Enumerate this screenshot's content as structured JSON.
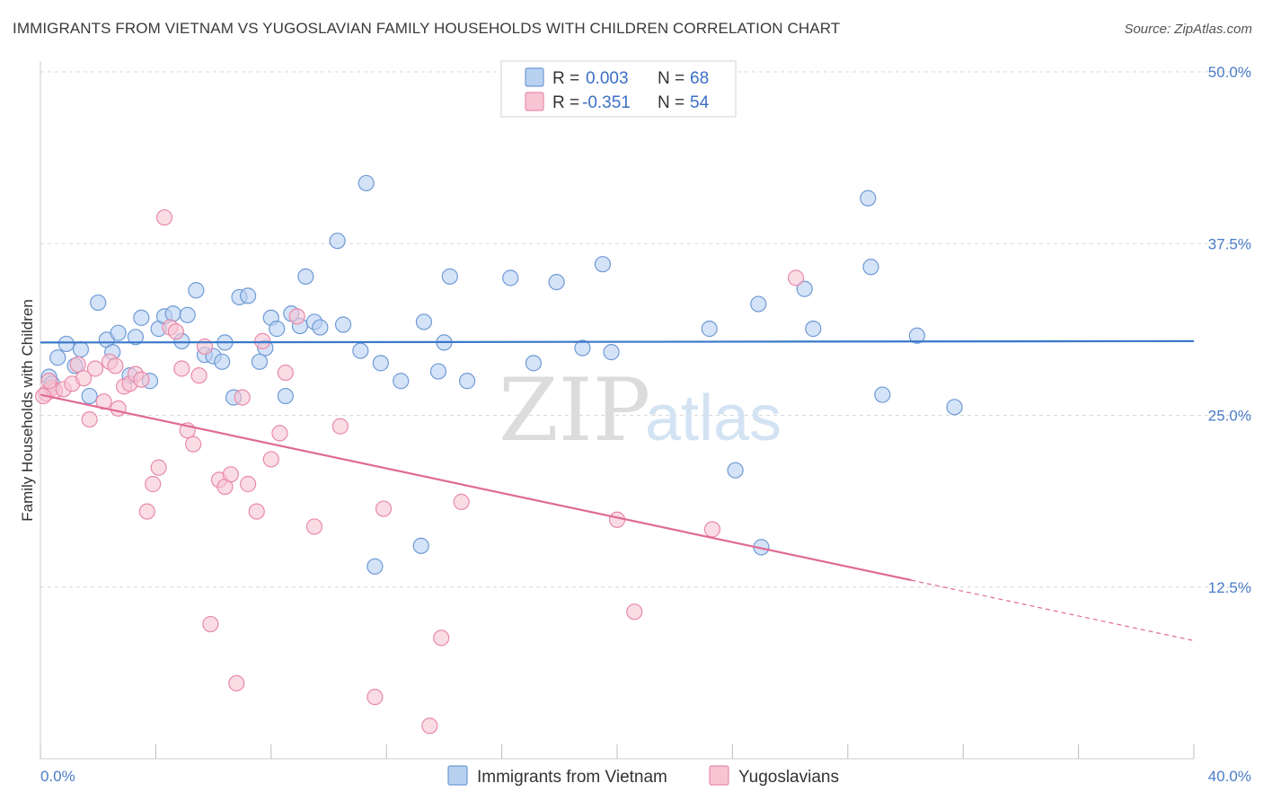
{
  "title": "IMMIGRANTS FROM VIETNAM VS YUGOSLAVIAN FAMILY HOUSEHOLDS WITH CHILDREN CORRELATION CHART",
  "source": "Source: ZipAtlas.com",
  "watermark": {
    "zip": "ZIP",
    "atlas": "atlas"
  },
  "colors": {
    "vietnam_fill": "#b8d1f1",
    "vietnam_stroke": "#6f9ad6",
    "vietnam_line": "#3a78c9",
    "yugo_fill": "#f7c4d4",
    "yugo_stroke": "#e88aa9",
    "yugo_line": "#e06a95",
    "grid": "#d8d8d8",
    "axis_label": "#4a7cc9"
  },
  "legend": {
    "rows": [
      {
        "r_label": "R =",
        "r_value": "0.003",
        "n_label": "N =",
        "n_value": "68"
      },
      {
        "r_label": "R =",
        "r_value": "-0.351",
        "n_label": "N =",
        "n_value": "54"
      }
    ]
  },
  "chart_data": {
    "type": "scatter",
    "title": "IMMIGRANTS FROM VIETNAM VS YUGOSLAVIAN FAMILY HOUSEHOLDS WITH CHILDREN CORRELATION CHART",
    "xlabel": "",
    "ylabel": "Family Households with Children",
    "xlim": [
      0,
      40
    ],
    "ylim": [
      0,
      50
    ],
    "x_tick_labels": [
      "0.0%",
      "40.0%"
    ],
    "y_ticks": [
      12.5,
      25.0,
      37.5,
      50.0
    ],
    "y_tick_labels": [
      "12.5%",
      "25.0%",
      "37.5%",
      "50.0%"
    ],
    "grid": true,
    "legend_position": "top-center",
    "series": [
      {
        "name": "Immigrants from Vietnam",
        "trend": {
          "x": [
            0,
            40
          ],
          "y": [
            30.3,
            30.4
          ]
        },
        "points": [
          [
            0.3,
            27.8
          ],
          [
            0.4,
            27.3
          ],
          [
            0.6,
            29.2
          ],
          [
            0.9,
            30.2
          ],
          [
            1.2,
            28.6
          ],
          [
            1.4,
            29.8
          ],
          [
            1.7,
            26.4
          ],
          [
            2.0,
            33.2
          ],
          [
            2.3,
            30.5
          ],
          [
            2.5,
            29.6
          ],
          [
            2.7,
            31.0
          ],
          [
            3.1,
            27.9
          ],
          [
            3.3,
            30.7
          ],
          [
            3.5,
            32.1
          ],
          [
            3.8,
            27.5
          ],
          [
            4.1,
            31.3
          ],
          [
            4.3,
            32.2
          ],
          [
            4.6,
            32.4
          ],
          [
            4.9,
            30.4
          ],
          [
            5.1,
            32.3
          ],
          [
            5.4,
            34.1
          ],
          [
            5.7,
            29.4
          ],
          [
            6.0,
            29.3
          ],
          [
            6.3,
            28.9
          ],
          [
            6.4,
            30.3
          ],
          [
            6.7,
            26.3
          ],
          [
            6.9,
            33.6
          ],
          [
            7.2,
            33.7
          ],
          [
            7.6,
            28.9
          ],
          [
            7.8,
            29.9
          ],
          [
            8.0,
            32.1
          ],
          [
            8.2,
            31.3
          ],
          [
            8.5,
            26.4
          ],
          [
            8.7,
            32.4
          ],
          [
            9.0,
            31.5
          ],
          [
            9.2,
            35.1
          ],
          [
            9.5,
            31.8
          ],
          [
            9.7,
            31.4
          ],
          [
            10.3,
            37.7
          ],
          [
            10.5,
            31.6
          ],
          [
            11.1,
            29.7
          ],
          [
            11.3,
            41.9
          ],
          [
            11.6,
            14.0
          ],
          [
            11.8,
            28.8
          ],
          [
            12.5,
            27.5
          ],
          [
            13.2,
            15.5
          ],
          [
            13.3,
            31.8
          ],
          [
            13.8,
            28.2
          ],
          [
            14.0,
            30.3
          ],
          [
            14.2,
            35.1
          ],
          [
            14.8,
            27.5
          ],
          [
            16.3,
            35.0
          ],
          [
            17.1,
            28.8
          ],
          [
            17.9,
            34.7
          ],
          [
            18.8,
            29.9
          ],
          [
            19.5,
            36.0
          ],
          [
            19.8,
            29.6
          ],
          [
            23.2,
            31.3
          ],
          [
            24.1,
            21.0
          ],
          [
            24.9,
            33.1
          ],
          [
            25.0,
            15.4
          ],
          [
            26.5,
            34.2
          ],
          [
            26.8,
            31.3
          ],
          [
            28.7,
            40.8
          ],
          [
            28.8,
            35.8
          ],
          [
            29.2,
            26.5
          ],
          [
            30.4,
            30.8
          ],
          [
            31.7,
            25.6
          ]
        ]
      },
      {
        "name": "Yugoslavians",
        "trend": {
          "x": [
            0,
            30.2,
            40
          ],
          "y": [
            26.5,
            13.0,
            8.6
          ]
        },
        "points": [
          [
            0.2,
            26.6
          ],
          [
            0.4,
            27.0
          ],
          [
            0.5,
            26.8
          ],
          [
            0.8,
            26.9
          ],
          [
            1.1,
            27.3
          ],
          [
            1.3,
            28.7
          ],
          [
            1.5,
            27.7
          ],
          [
            1.7,
            24.7
          ],
          [
            1.9,
            28.4
          ],
          [
            2.2,
            26.0
          ],
          [
            2.4,
            28.9
          ],
          [
            2.6,
            28.6
          ],
          [
            2.7,
            25.5
          ],
          [
            2.9,
            27.1
          ],
          [
            3.1,
            27.3
          ],
          [
            3.3,
            28.0
          ],
          [
            3.5,
            27.6
          ],
          [
            3.7,
            18.0
          ],
          [
            3.9,
            20.0
          ],
          [
            4.1,
            21.2
          ],
          [
            4.3,
            39.4
          ],
          [
            4.5,
            31.4
          ],
          [
            4.7,
            31.1
          ],
          [
            4.9,
            28.4
          ],
          [
            5.1,
            23.9
          ],
          [
            5.3,
            22.9
          ],
          [
            5.5,
            27.9
          ],
          [
            5.7,
            30.0
          ],
          [
            5.9,
            9.8
          ],
          [
            6.2,
            20.3
          ],
          [
            6.4,
            19.8
          ],
          [
            6.6,
            20.7
          ],
          [
            6.8,
            5.5
          ],
          [
            7.0,
            26.3
          ],
          [
            7.2,
            20.0
          ],
          [
            7.5,
            18.0
          ],
          [
            7.7,
            30.4
          ],
          [
            8.0,
            21.8
          ],
          [
            8.3,
            23.7
          ],
          [
            8.5,
            28.1
          ],
          [
            8.9,
            32.2
          ],
          [
            9.5,
            16.9
          ],
          [
            10.4,
            24.2
          ],
          [
            11.6,
            4.5
          ],
          [
            11.9,
            18.2
          ],
          [
            13.5,
            2.4
          ],
          [
            13.9,
            8.8
          ],
          [
            14.6,
            18.7
          ],
          [
            20.0,
            17.4
          ],
          [
            20.6,
            10.7
          ],
          [
            23.3,
            16.7
          ],
          [
            26.2,
            35.0
          ],
          [
            0.1,
            26.4
          ],
          [
            0.3,
            27.5
          ]
        ]
      }
    ]
  },
  "bottom_legend": [
    {
      "label": "Immigrants from Vietnam"
    },
    {
      "label": "Yugoslavians"
    }
  ]
}
